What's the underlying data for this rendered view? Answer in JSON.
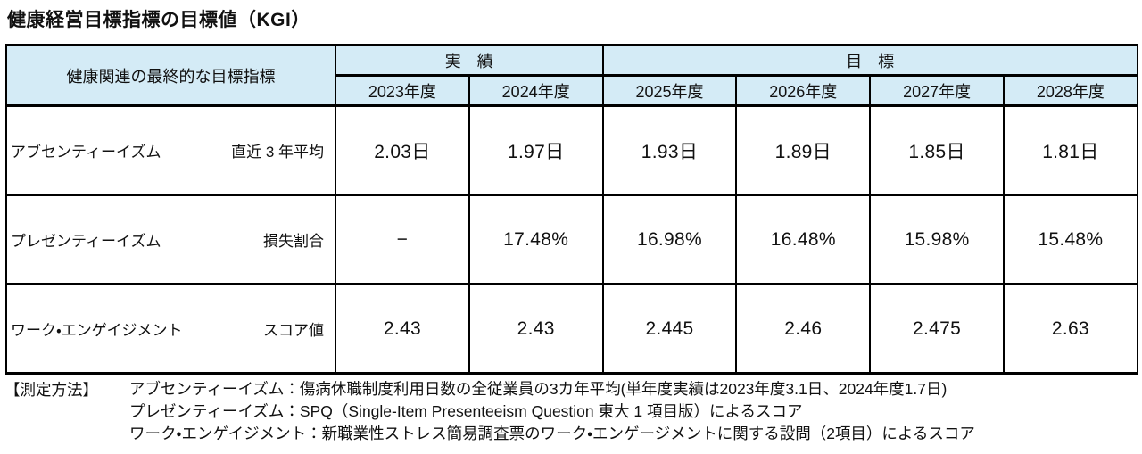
{
  "title": "健康経営目標指標の目標値（KGI）",
  "table": {
    "corner_header": "健康関連の最終的な目標指標",
    "group_headers": {
      "actual": "実　績",
      "target": "目　標"
    },
    "year_headers": [
      "2023年度",
      "2024年度",
      "2025年度",
      "2026年度",
      "2027年度",
      "2028年度"
    ],
    "rows": [
      {
        "indicator": "アブセンティーイズム",
        "measure": "直近 3 年平均",
        "values": [
          "2.03日",
          "1.97日",
          "1.93日",
          "1.89日",
          "1.85日",
          "1.81日"
        ]
      },
      {
        "indicator": "プレゼンティーイズム",
        "measure": "損失割合",
        "values": [
          "−",
          "17.48%",
          "16.98%",
          "16.48%",
          "15.98%",
          "15.48%"
        ]
      },
      {
        "indicator": "ワーク・エンゲイジメント",
        "measure": "スコア値",
        "values": [
          "2.43",
          "2.43",
          "2.445",
          "2.46",
          "2.475",
          "2.63"
        ]
      }
    ]
  },
  "footnotes": {
    "label": "【測定方法】",
    "lines": [
      "アブセンティーイズム：傷病休職制度利用日数の全従業員の3カ年平均(単年度実績は2023年度3.1日、2024年度1.7日)",
      "プレゼンティーイズム：SPQ（Single-Item Presenteeism Question 東大 1 項目版）によるスコア",
      "ワーク・エンゲイジメント：新職業性ストレス簡易調査票のワーク・エンゲージメントに関する設問（2項目）によるスコア"
    ]
  },
  "colors": {
    "header_bg": "#d4ebf6",
    "border": "#000000",
    "text": "#111111",
    "background": "#ffffff"
  }
}
